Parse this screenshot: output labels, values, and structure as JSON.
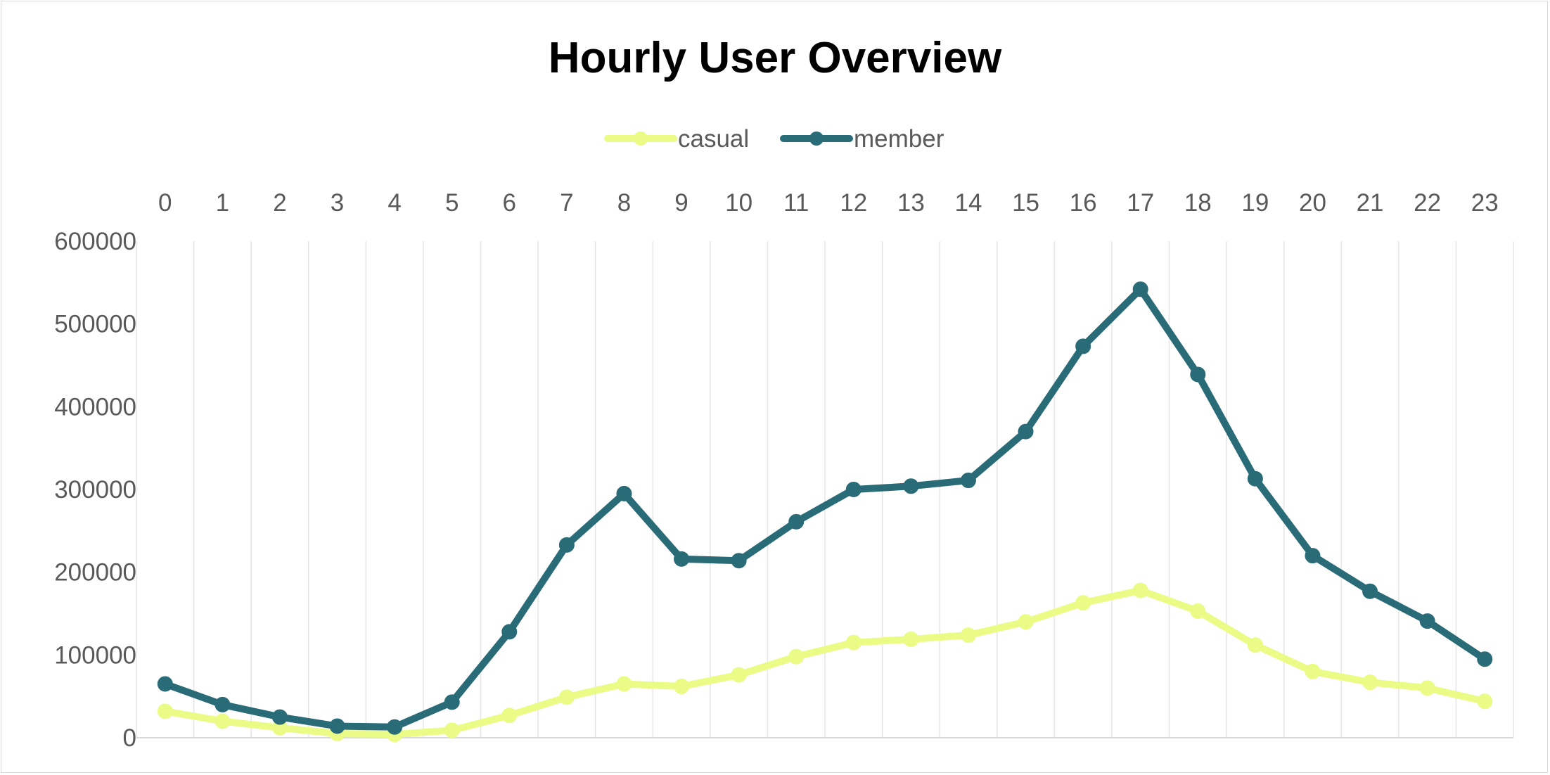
{
  "chart_data": {
    "type": "line",
    "title": "Hourly User Overview",
    "xlabel": "",
    "ylabel": "",
    "x_axis_position": "top",
    "grid": "vertical",
    "legend_position": "top",
    "categories": [
      "0",
      "1",
      "2",
      "3",
      "4",
      "5",
      "6",
      "7",
      "8",
      "9",
      "10",
      "11",
      "12",
      "13",
      "14",
      "15",
      "16",
      "17",
      "18",
      "19",
      "20",
      "21",
      "22",
      "23"
    ],
    "ylim": [
      0,
      600000
    ],
    "yticks": [
      "0",
      "100000",
      "200000",
      "300000",
      "400000",
      "500000",
      "600000"
    ],
    "series": [
      {
        "name": "casual",
        "color": "#eafc86",
        "values": [
          32000,
          20000,
          12000,
          5000,
          4000,
          9000,
          27000,
          49000,
          65000,
          62000,
          76000,
          98000,
          115000,
          119000,
          124000,
          140000,
          163000,
          178000,
          153000,
          112000,
          80000,
          67000,
          60000,
          44000
        ]
      },
      {
        "name": "member",
        "color": "#2a6b78",
        "values": [
          65000,
          40000,
          25000,
          14000,
          13000,
          43000,
          128000,
          233000,
          295000,
          216000,
          214000,
          261000,
          300000,
          304000,
          311000,
          370000,
          473000,
          542000,
          439000,
          313000,
          220000,
          177000,
          141000,
          95000
        ]
      }
    ]
  }
}
